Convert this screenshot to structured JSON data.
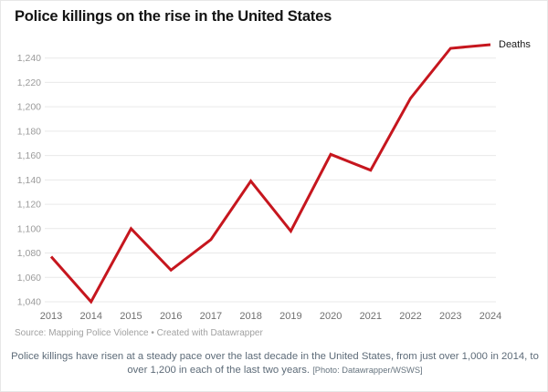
{
  "header": {
    "title": "Police killings on the rise in the United States"
  },
  "chart_data": {
    "type": "line",
    "title": "Police killings on the rise in the United States",
    "series_label": "Deaths",
    "categories": [
      "2013",
      "2014",
      "2015",
      "2016",
      "2017",
      "2018",
      "2019",
      "2020",
      "2021",
      "2022",
      "2023",
      "2024"
    ],
    "values": [
      1077,
      1040,
      1100,
      1066,
      1091,
      1139,
      1098,
      1161,
      1148,
      1207,
      1248,
      1251
    ],
    "xlabel": "",
    "ylabel": "",
    "ylim": [
      1040,
      1240
    ],
    "yticks": [
      {
        "value": 1040,
        "label": "1,040"
      },
      {
        "value": 1060,
        "label": "1,060"
      },
      {
        "value": 1080,
        "label": "1,080"
      },
      {
        "value": 1100,
        "label": "1,100"
      },
      {
        "value": 1120,
        "label": "1,120"
      },
      {
        "value": 1140,
        "label": "1,140"
      },
      {
        "value": 1160,
        "label": "1,160"
      },
      {
        "value": 1180,
        "label": "1,180"
      },
      {
        "value": 1200,
        "label": "1,200"
      },
      {
        "value": 1220,
        "label": "1,220"
      },
      {
        "value": 1240,
        "label": "1,240"
      }
    ],
    "grid": "horizontal",
    "legend_position": "end-of-line",
    "line_color": "#c6161e",
    "grid_color": "#e9e9e9",
    "ytick_color": "#9b9b9b",
    "xtick_color": "#6f6f6f"
  },
  "footer": {
    "source": "Source: Mapping Police Violence • Created with Datawrapper",
    "caption": "Police killings have risen at a steady pace over the last decade in the United States, from just over 1,000 in 2014, to over 1,200 in each of the last two years.",
    "photo_credit": "[Photo: Datawrapper/WSWS]"
  }
}
